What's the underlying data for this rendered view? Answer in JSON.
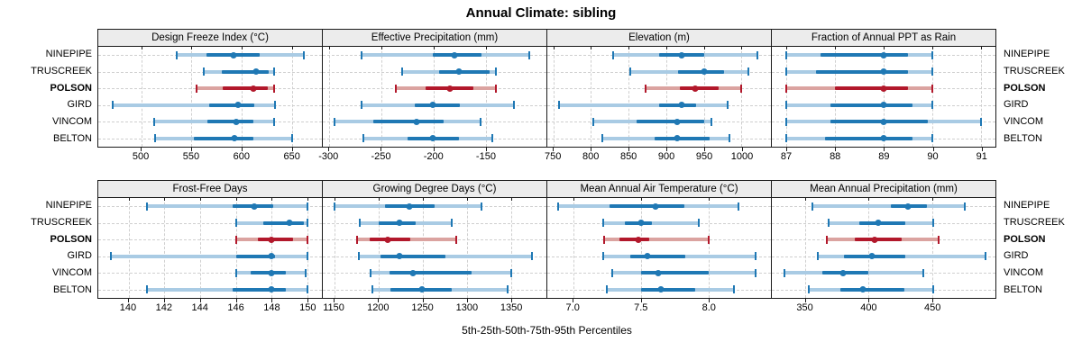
{
  "header": {
    "title": "Annual Climate: sibling"
  },
  "footer": {
    "label": "5th-25th-50th-75th-95th Percentiles"
  },
  "colors": {
    "series_dark_blue": "#1f78b4",
    "series_light_blue": "#a9cbe4",
    "highlight_dark_red": "#b2182b",
    "highlight_light_red": "#dba3a0",
    "grid": "#cfcfcf",
    "panel_header_bg": "#ececec",
    "panel_border": "#1a1a1a"
  },
  "chart_data": {
    "type": "dotplot-intervals",
    "percentiles": [
      5,
      25,
      50,
      75,
      95
    ],
    "sites": [
      "NINEPIPE",
      "TRUSCREEK",
      "POLSON",
      "GIRD",
      "VINCOM",
      "BELTON"
    ],
    "highlight_site": "POLSON",
    "legend_position": "none",
    "grid": "dashed",
    "panels": [
      {
        "row": 0,
        "title": "Design Freeze Index (°C)",
        "xlim": [
          457,
          680
        ],
        "ticks": [
          500,
          550,
          600,
          650
        ],
        "tick_labels": [
          "500",
          "550",
          "600",
          "650"
        ],
        "values": [
          [
            535,
            565,
            592,
            618,
            662
          ],
          [
            562,
            580,
            614,
            627,
            632
          ],
          [
            555,
            581,
            612,
            626,
            632
          ],
          [
            471,
            568,
            596,
            613,
            633
          ],
          [
            513,
            566,
            595,
            612,
            632
          ],
          [
            514,
            552,
            593,
            612,
            650
          ]
        ]
      },
      {
        "row": 0,
        "title": "Effective Precipitation (mm)",
        "xlim": [
          -306,
          -92
        ],
        "ticks": [
          -300,
          -250,
          -200,
          -150
        ],
        "tick_labels": [
          "-300",
          "-250",
          "-200",
          "-150"
        ],
        "values": [
          [
            -269,
            -201,
            -180,
            -154,
            -108
          ],
          [
            -230,
            -195,
            -176,
            -146,
            -140
          ],
          [
            -236,
            -208,
            -184,
            -162,
            -140
          ],
          [
            -269,
            -218,
            -201,
            -175,
            -123
          ],
          [
            -295,
            -258,
            -216,
            -190,
            -155
          ],
          [
            -267,
            -225,
            -201,
            -176,
            -144
          ]
        ]
      },
      {
        "row": 0,
        "title": "Elevation (m)",
        "xlim": [
          742,
          1039
        ],
        "ticks": [
          750,
          800,
          850,
          900,
          950,
          1000
        ],
        "tick_labels": [
          "750",
          "800",
          "850",
          "900",
          "950",
          "1000"
        ],
        "values": [
          [
            830,
            891,
            920,
            950,
            1021
          ],
          [
            852,
            916,
            950,
            977,
            1009
          ],
          [
            872,
            918,
            939,
            969,
            999
          ],
          [
            757,
            891,
            920,
            940,
            981
          ],
          [
            803,
            860,
            915,
            950,
            960
          ],
          [
            815,
            884,
            914,
            958,
            984
          ]
        ]
      },
      {
        "row": 0,
        "title": "Fraction of Annual PPT as Rain",
        "xlim": [
          86.7,
          91.3
        ],
        "ticks": [
          87,
          88,
          89,
          90,
          91
        ],
        "tick_labels": [
          "87",
          "88",
          "89",
          "90",
          "91"
        ],
        "values": [
          [
            87.0,
            87.7,
            89.0,
            89.5,
            90.0
          ],
          [
            87.0,
            87.6,
            89.0,
            89.5,
            90.0
          ],
          [
            87.0,
            88.0,
            89.0,
            89.5,
            90.0
          ],
          [
            87.0,
            87.9,
            89.0,
            89.6,
            90.0
          ],
          [
            87.0,
            87.9,
            89.0,
            89.9,
            91.0
          ],
          [
            87.0,
            87.8,
            89.0,
            89.6,
            90.0
          ]
        ]
      },
      {
        "row": 1,
        "title": "Frost-Free Days",
        "xlim": [
          138.3,
          150.8
        ],
        "ticks": [
          140,
          142,
          144,
          146,
          148,
          150
        ],
        "tick_labels": [
          "140",
          "142",
          "144",
          "146",
          "148",
          "150"
        ],
        "values": [
          [
            141,
            145.8,
            147,
            148.1,
            150
          ],
          [
            146,
            147.5,
            149,
            149.8,
            150
          ],
          [
            146,
            147.2,
            148,
            149.2,
            150
          ],
          [
            139,
            146,
            148,
            148.2,
            150
          ],
          [
            146,
            146.8,
            148,
            148.8,
            149.9
          ],
          [
            141,
            145.8,
            148,
            148.8,
            150
          ]
        ]
      },
      {
        "row": 1,
        "title": "Growing Degree Days (°C)",
        "xlim": [
          1137,
          1390
        ],
        "ticks": [
          1150,
          1200,
          1250,
          1300,
          1350
        ],
        "tick_labels": [
          "1150",
          "1200",
          "1250",
          "1300",
          "1350"
        ],
        "values": [
          [
            1150,
            1207,
            1235,
            1264,
            1317
          ],
          [
            1179,
            1200,
            1224,
            1242,
            1283
          ],
          [
            1176,
            1190,
            1210,
            1236,
            1288
          ],
          [
            1178,
            1202,
            1224,
            1276,
            1374
          ],
          [
            1191,
            1213,
            1239,
            1305,
            1350
          ],
          [
            1193,
            1214,
            1249,
            1283,
            1346
          ]
        ]
      },
      {
        "row": 1,
        "title": "Mean Annual Air Temperature (°C)",
        "xlim": [
          6.81,
          8.46
        ],
        "ticks": [
          7.0,
          7.5,
          8.0
        ],
        "tick_labels": [
          "7.0",
          "7.5",
          "8.0"
        ],
        "values": [
          [
            6.89,
            7.27,
            7.61,
            7.82,
            8.22
          ],
          [
            7.22,
            7.38,
            7.5,
            7.58,
            7.93
          ],
          [
            7.23,
            7.34,
            7.48,
            7.56,
            8.0
          ],
          [
            7.22,
            7.42,
            7.55,
            7.83,
            8.35
          ],
          [
            7.29,
            7.5,
            7.63,
            8.0,
            8.35
          ],
          [
            7.25,
            7.5,
            7.65,
            7.9,
            8.19
          ]
        ]
      },
      {
        "row": 1,
        "title": "Mean Annual Precipitation (mm)",
        "xlim": [
          324,
          500
        ],
        "ticks": [
          350,
          400,
          450
        ],
        "tick_labels": [
          "350",
          "400",
          "450"
        ],
        "values": [
          [
            356,
            418,
            431,
            446,
            476
          ],
          [
            369,
            393,
            408,
            429,
            451
          ],
          [
            367,
            389,
            405,
            426,
            455
          ],
          [
            360,
            381,
            403,
            429,
            492
          ],
          [
            334,
            364,
            380,
            400,
            443
          ],
          [
            353,
            378,
            396,
            428,
            451
          ]
        ]
      }
    ]
  }
}
